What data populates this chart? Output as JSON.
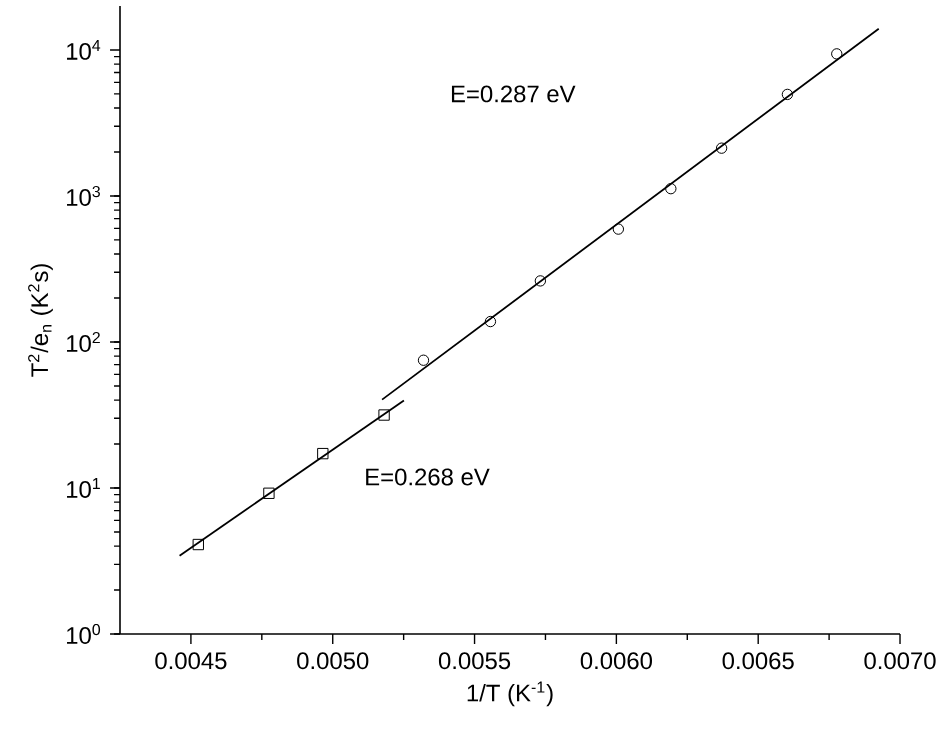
{
  "chart_data": {
    "type": "scatter",
    "xlabel": "1/T (K$^{-1}$)",
    "ylabel": "T$^{2}$/e$_{n}$ (K$^{2}$s)",
    "log": "y",
    "grid": false,
    "xlim": [
      0.00425,
      0.007
    ],
    "ylim": [
      1,
      20000
    ],
    "xticks": [
      {
        "value": 0.0045,
        "label": "0.0045"
      },
      {
        "value": 0.005,
        "label": "0.0050"
      },
      {
        "value": 0.0055,
        "label": "0.0055"
      },
      {
        "value": 0.006,
        "label": "0.0060"
      },
      {
        "value": 0.0065,
        "label": "0.0065"
      },
      {
        "value": 0.007,
        "label": "0.0070"
      }
    ],
    "yticks": [
      {
        "value": 1,
        "label": "10$^{0}$"
      },
      {
        "value": 10,
        "label": "10$^{1}$"
      },
      {
        "value": 100,
        "label": "10$^{2}$"
      },
      {
        "value": 1000,
        "label": "10$^{3}$"
      },
      {
        "value": 10000,
        "label": "10$^{4}$"
      }
    ],
    "series": [
      {
        "marker": "square",
        "color": "#000000",
        "x": [
          0.004526,
          0.004775,
          0.004965,
          0.005181
        ],
        "values": [
          4.1,
          9.2,
          17.2,
          31.6
        ]
      },
      {
        "marker": "circle",
        "color": "#000000",
        "x": [
          0.00532,
          0.005556,
          0.005732,
          0.006007,
          0.006192,
          0.006371,
          0.006603,
          0.006777
        ],
        "values": [
          75,
          138,
          262,
          593,
          1122,
          2125,
          4960,
          9400
        ]
      },
      {
        "type": "line",
        "marker": "none",
        "color": "#000000",
        "x": [
          0.00446,
          0.005251
        ],
        "values": [
          3.44,
          39.8
        ]
      },
      {
        "type": "line",
        "marker": "none",
        "color": "#000000",
        "x": [
          0.005174,
          0.006925
        ],
        "values": [
          40.3,
          13970
        ]
      }
    ],
    "annotations": [
      "E=0.287 eV",
      "E=0.268 eV"
    ]
  }
}
